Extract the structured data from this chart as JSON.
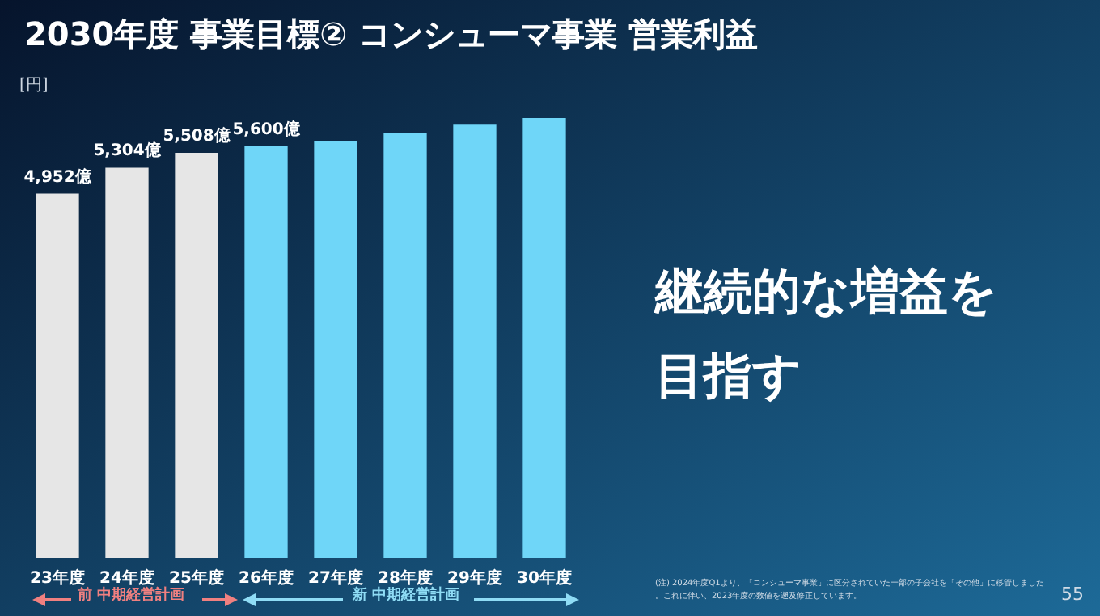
{
  "chart_data": {
    "type": "bar",
    "title": "2030年度 事業目標② コンシューマ事業 営業利益",
    "categories": [
      "23年度",
      "24年度",
      "25年度",
      "26年度",
      "27年度",
      "28年度",
      "29年度",
      "30年度"
    ],
    "values": [
      4952,
      5304,
      5508,
      5600,
      5670,
      5780,
      5890,
      5980
    ],
    "value_labels": [
      "4,952億",
      "5,304億",
      "5,508億",
      "5,600億",
      null,
      null,
      null,
      null
    ],
    "colors": [
      "#e6e6e6",
      "#e6e6e6",
      "#e6e6e6",
      "#6fd6f8",
      "#6fd6f8",
      "#6fd6f8",
      "#6fd6f8",
      "#6fd6f8"
    ],
    "annotations": [
      "[円]",
      "継続的な増益を目指す",
      "前 中期経営計画",
      "新 中期経営計画",
      "(注) 2024年度Q1より、「コンシューマ事業」に区分されていた一部の子会社を「その他」に移管しました。これに伴い、2023年度の数値を遡及修正しています。",
      "55"
    ]
  }
}
